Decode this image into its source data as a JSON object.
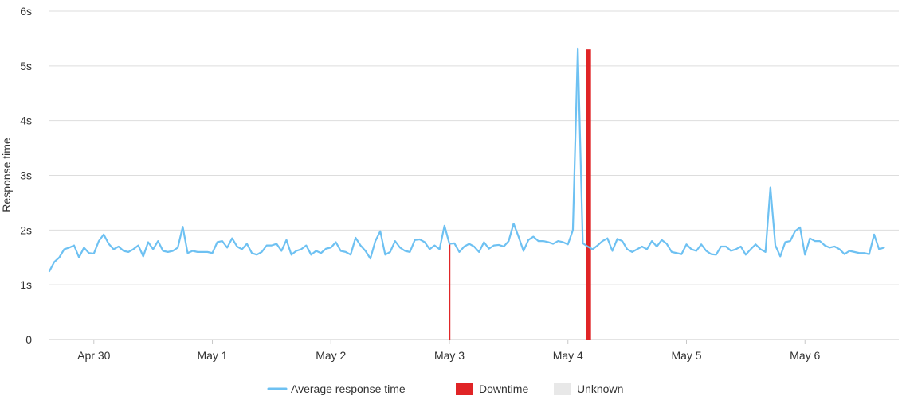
{
  "colors": {
    "response_line": "#6ec1f2",
    "downtime": "#e02426",
    "unknown": "#e8e8e8",
    "grid": "#dddddd",
    "axis_text": "#333333"
  },
  "chart_data": {
    "type": "line",
    "title": "",
    "ylabel": "Response time",
    "xlabel": "",
    "y_unit": "s",
    "ylim": [
      0,
      6
    ],
    "y_ticks": [
      0,
      1,
      2,
      3,
      4,
      5,
      6
    ],
    "y_tick_labels": [
      "0",
      "1s",
      "2s",
      "3s",
      "4s",
      "5s",
      "6s"
    ],
    "x_range": [
      "2023-04-29T15:00",
      "2023-05-06T19:00"
    ],
    "x_ticks": [
      "2023-04-30T00:00",
      "2023-05-01T00:00",
      "2023-05-02T00:00",
      "2023-05-03T00:00",
      "2023-05-04T00:00",
      "2023-05-05T00:00",
      "2023-05-06T00:00"
    ],
    "x_tick_labels": [
      "Apr 30",
      "May 1",
      "May 2",
      "May 3",
      "May 4",
      "May 5",
      "May 6"
    ],
    "grid": "horizontal",
    "legend_position": "bottom",
    "legend": [
      {
        "label": "Average response time",
        "kind": "line",
        "color": "#6ec1f2"
      },
      {
        "label": "Downtime",
        "kind": "box",
        "color": "#e02426"
      },
      {
        "label": "Unknown",
        "kind": "box",
        "color": "#e8e8e8"
      }
    ],
    "series": [
      {
        "name": "Average response time",
        "time_step_hours": 1,
        "start": "2023-04-29T15:00",
        "values": [
          1.25,
          1.42,
          1.5,
          1.65,
          1.68,
          1.72,
          1.5,
          1.68,
          1.58,
          1.57,
          1.8,
          1.92,
          1.75,
          1.65,
          1.7,
          1.62,
          1.6,
          1.65,
          1.72,
          1.52,
          1.78,
          1.65,
          1.8,
          1.62,
          1.6,
          1.62,
          1.68,
          2.06,
          1.58,
          1.62,
          1.6,
          1.6,
          1.6,
          1.58,
          1.78,
          1.8,
          1.68,
          1.85,
          1.7,
          1.65,
          1.75,
          1.58,
          1.55,
          1.6,
          1.72,
          1.72,
          1.75,
          1.62,
          1.82,
          1.55,
          1.62,
          1.65,
          1.72,
          1.55,
          1.62,
          1.58,
          1.66,
          1.68,
          1.78,
          1.62,
          1.6,
          1.55,
          1.86,
          1.72,
          1.62,
          1.48,
          1.8,
          1.98,
          1.55,
          1.6,
          1.8,
          1.68,
          1.62,
          1.6,
          1.82,
          1.83,
          1.78,
          1.65,
          1.72,
          1.65,
          2.08,
          1.75,
          1.76,
          1.6,
          1.7,
          1.75,
          1.7,
          1.6,
          1.78,
          1.66,
          1.72,
          1.73,
          1.7,
          1.8,
          2.12,
          1.88,
          1.62,
          1.82,
          1.88,
          1.8,
          1.8,
          1.78,
          1.75,
          1.8,
          1.78,
          1.74,
          2.0,
          5.32,
          1.76,
          1.7,
          1.65,
          1.72,
          1.8,
          1.85,
          1.62,
          1.84,
          1.8,
          1.65,
          1.6,
          1.65,
          1.7,
          1.65,
          1.8,
          1.7,
          1.82,
          1.75,
          1.6,
          1.58,
          1.56,
          1.74,
          1.65,
          1.62,
          1.74,
          1.62,
          1.56,
          1.55,
          1.7,
          1.7,
          1.62,
          1.65,
          1.7,
          1.55,
          1.65,
          1.74,
          1.65,
          1.6,
          2.78,
          1.72,
          1.52,
          1.78,
          1.8,
          1.98,
          2.05,
          1.55,
          1.85,
          1.8,
          1.8,
          1.72,
          1.68,
          1.7,
          1.65,
          1.56,
          1.62,
          1.6,
          1.58,
          1.58,
          1.56,
          1.92,
          1.65,
          1.68
        ]
      }
    ],
    "downtime": [
      {
        "start": "2023-05-03T00:00",
        "end": "2023-05-03T00:10",
        "value": 1.75
      },
      {
        "start": "2023-05-04T03:40",
        "end": "2023-05-04T04:40",
        "value": 5.3
      }
    ],
    "unknown": []
  }
}
